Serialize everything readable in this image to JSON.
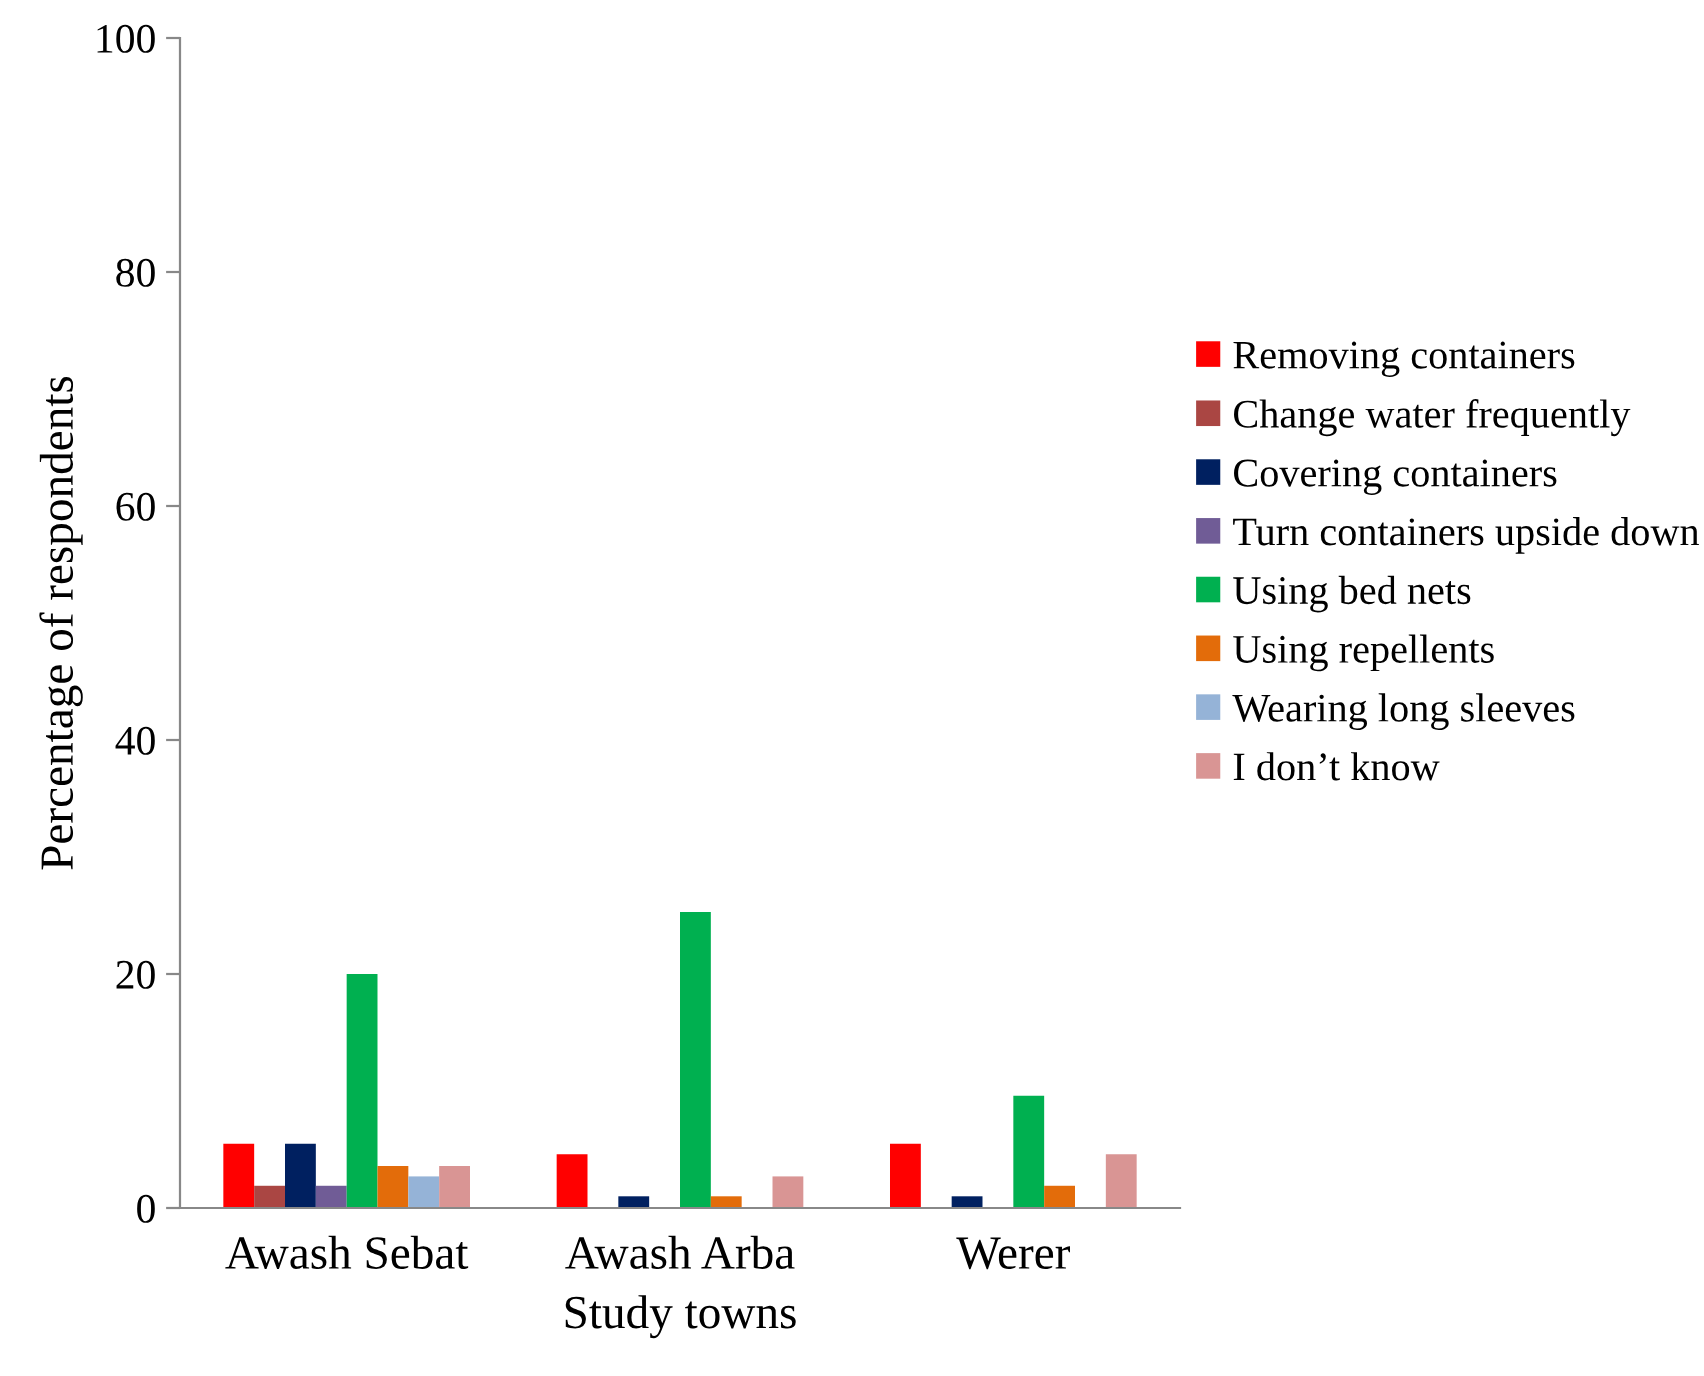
{
  "chart_data": {
    "type": "bar",
    "xlabel": "Study towns",
    "ylabel": "Percentage of respondents",
    "categories": [
      "Awash Sebat",
      "Awash Arba",
      "Werer"
    ],
    "series": [
      {
        "name": "Removing containers",
        "color": "#ff0000",
        "values": [
          5.5,
          4.6,
          5.5
        ]
      },
      {
        "name": "Change water frequently",
        "color": "#aa4643",
        "values": [
          1.9,
          0,
          0
        ]
      },
      {
        "name": "Covering containers",
        "color": "#002060",
        "values": [
          5.5,
          1.0,
          1.0
        ]
      },
      {
        "name": "Turn containers upside down",
        "color": "#705c96",
        "values": [
          1.9,
          0,
          0
        ]
      },
      {
        "name": "Using bed nets",
        "color": "#00b050",
        "values": [
          20.0,
          25.3,
          9.6
        ]
      },
      {
        "name": "Using repellents",
        "color": "#e36c0a",
        "values": [
          3.6,
          1.0,
          1.9
        ]
      },
      {
        "name": "Wearing long sleeves",
        "color": "#95b3d7",
        "values": [
          2.7,
          0,
          0
        ]
      },
      {
        "name": "I don’t know",
        "color": "#d99594",
        "values": [
          3.6,
          2.7,
          4.6
        ]
      }
    ],
    "ylim": [
      0,
      100
    ],
    "yticks": [
      0,
      20,
      40,
      60,
      80,
      100
    ],
    "grid": false,
    "legend": "right"
  }
}
